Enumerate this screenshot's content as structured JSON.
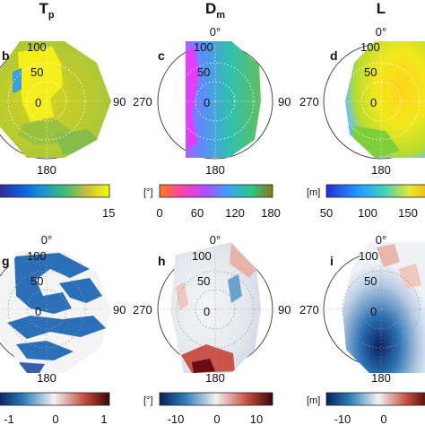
{
  "figure": {
    "titles": [
      "T",
      "D",
      "L"
    ],
    "title_subs": [
      "p",
      "m",
      ""
    ],
    "panel_letters_top": [
      "b",
      "c",
      "d"
    ],
    "panel_letters_bottom": [
      "g",
      "h",
      "i"
    ],
    "radial_ticks": [
      "100",
      "50",
      "0"
    ],
    "angle_labels": {
      "top": "0°",
      "right": "90",
      "left": "270",
      "bottom": "180"
    },
    "colorbar_units": [
      "",
      "[°]",
      "[m]",
      "",
      "[°]",
      "[m]"
    ],
    "colorbar_ticks": [
      [
        "15"
      ],
      [
        "0",
        "60",
        "120",
        "180"
      ],
      [
        "50",
        "100",
        "150"
      ],
      [
        "-1",
        "0",
        "1"
      ],
      [
        "-10",
        "0",
        "10"
      ],
      [
        "-10",
        "0"
      ]
    ]
  },
  "chart_data": [
    {
      "panel": "b",
      "type": "heatmap",
      "title": "Tp",
      "coordinate": "polar",
      "theta_labels": [
        "0°",
        "90",
        "180",
        "270"
      ],
      "r_ticks": [
        0,
        50,
        100
      ],
      "colormap": "parula",
      "clim": [
        null,
        15
      ]
    },
    {
      "panel": "c",
      "type": "heatmap",
      "title": "Dm",
      "coordinate": "polar",
      "theta_labels": [
        "0°",
        "90",
        "180",
        "270"
      ],
      "r_ticks": [
        0,
        50,
        100
      ],
      "colormap": "hsv",
      "clim": [
        0,
        180
      ],
      "colorbar_ticks": [
        0,
        60,
        120,
        180
      ],
      "unit": "[°]"
    },
    {
      "panel": "d",
      "type": "heatmap",
      "title": "L",
      "coordinate": "polar",
      "theta_labels": [
        "0°",
        "90",
        "180",
        "270"
      ],
      "r_ticks": [
        0,
        50,
        100
      ],
      "colormap": "jet",
      "clim": [
        50,
        null
      ],
      "colorbar_ticks": [
        50,
        100,
        150
      ],
      "unit": "[m]"
    },
    {
      "panel": "g",
      "type": "heatmap",
      "coordinate": "polar",
      "theta_labels": [
        "0°",
        "90",
        "180",
        "270"
      ],
      "r_ticks": [
        0,
        50,
        100
      ],
      "colormap": "diverging",
      "clim": [
        -1,
        1
      ],
      "colorbar_ticks": [
        -1,
        0,
        1
      ]
    },
    {
      "panel": "h",
      "type": "heatmap",
      "coordinate": "polar",
      "theta_labels": [
        "0°",
        "90",
        "180",
        "270"
      ],
      "r_ticks": [
        0,
        50,
        100
      ],
      "colormap": "diverging",
      "clim": [
        -15,
        15
      ],
      "colorbar_ticks": [
        -10,
        0,
        10
      ],
      "unit": "[°]"
    },
    {
      "panel": "i",
      "type": "heatmap",
      "coordinate": "polar",
      "theta_labels": [
        "0°",
        "90",
        "180",
        "270"
      ],
      "r_ticks": [
        0,
        50,
        100
      ],
      "colormap": "diverging",
      "clim": [
        -15,
        15
      ],
      "colorbar_ticks": [
        -10,
        0
      ],
      "unit": "[m]"
    }
  ]
}
